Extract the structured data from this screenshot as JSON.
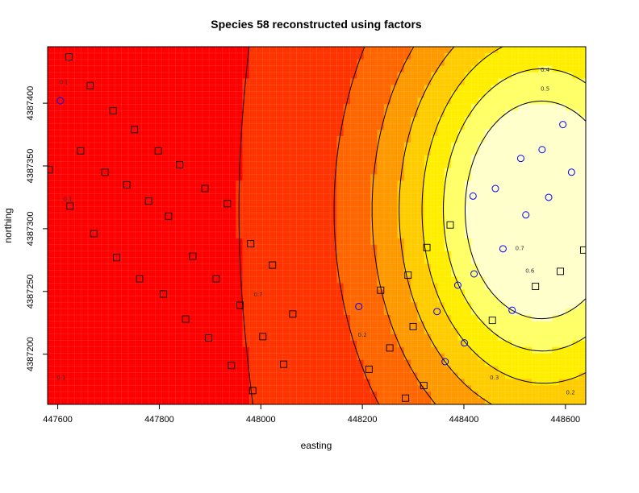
{
  "chart_data": {
    "type": "heatmap",
    "title": "Species 58 reconstructed using factors",
    "xlabel": "easting",
    "ylabel": "northing",
    "xlim": [
      447580,
      448640
    ],
    "ylim": [
      4387160,
      4387445
    ],
    "x_ticks": [
      447600,
      447800,
      448000,
      448200,
      448400,
      448600
    ],
    "y_ticks": [
      4387200,
      4387250,
      4387300,
      4387350,
      4387400
    ],
    "colors": [
      "#ff0000",
      "#ff3300",
      "#ff6600",
      "#ff9900",
      "#ffcc00",
      "#ffee00",
      "#ffff66",
      "#ffffcc"
    ],
    "contour_levels": [
      0.1,
      0.2,
      0.3,
      0.4,
      0.5,
      0.6,
      0.7
    ],
    "contour_labels": [
      {
        "text": "0.1",
        "x": 447612,
        "y": 4387415
      },
      {
        "text": "0.1",
        "x": 447620,
        "y": 4387322
      },
      {
        "text": "0.1",
        "x": 447607,
        "y": 4387180
      },
      {
        "text": "0.7",
        "x": 447995,
        "y": 4387246
      },
      {
        "text": "0.2",
        "x": 448200,
        "y": 4387214
      },
      {
        "text": "0.3",
        "x": 448460,
        "y": 4387180
      },
      {
        "text": "0.4",
        "x": 448560,
        "y": 4387425
      },
      {
        "text": "0.5",
        "x": 448560,
        "y": 4387410
      },
      {
        "text": "0.7",
        "x": 448510,
        "y": 4387283
      },
      {
        "text": "0.6",
        "x": 448530,
        "y": 4387265
      },
      {
        "text": "0.2",
        "x": 448610,
        "y": 4387168
      }
    ],
    "series": [
      {
        "marker": "square",
        "points": [
          [
            447622,
            4387437
          ],
          [
            447664,
            4387414
          ],
          [
            447709,
            4387394
          ],
          [
            447751,
            4387379
          ],
          [
            447798,
            4387362
          ],
          [
            447840,
            4387351
          ],
          [
            447890,
            4387332
          ],
          [
            447934,
            4387320
          ],
          [
            447583,
            4387347
          ],
          [
            447645,
            4387362
          ],
          [
            447693,
            4387345
          ],
          [
            447736,
            4387335
          ],
          [
            447779,
            4387322
          ],
          [
            447818,
            4387310
          ],
          [
            447624,
            4387318
          ],
          [
            447671,
            4387296
          ],
          [
            447716,
            4387277
          ],
          [
            447761,
            4387260
          ],
          [
            447808,
            4387248
          ],
          [
            447866,
            4387278
          ],
          [
            447912,
            4387260
          ],
          [
            447980,
            4387288
          ],
          [
            448023,
            4387271
          ],
          [
            447852,
            4387228
          ],
          [
            447897,
            4387213
          ],
          [
            447942,
            4387191
          ],
          [
            447959,
            4387239
          ],
          [
            448004,
            4387214
          ],
          [
            448045,
            4387192
          ],
          [
            448063,
            4387232
          ],
          [
            447984,
            4387171
          ],
          [
            448024,
            4387153
          ],
          [
            448213,
            4387188
          ],
          [
            448236,
            4387251
          ],
          [
            448254,
            4387205
          ],
          [
            448285,
            4387165
          ],
          [
            448290,
            4387263
          ],
          [
            448300,
            4387222
          ],
          [
            448321,
            4387175
          ],
          [
            448327,
            4387285
          ],
          [
            448373,
            4387303
          ],
          [
            448456,
            4387227
          ],
          [
            448541,
            4387254
          ],
          [
            448590,
            4387266
          ],
          [
            448636,
            4387283
          ],
          [
            448227,
            4387146
          ]
        ]
      },
      {
        "marker": "circle",
        "color": "#0000ff",
        "points": [
          [
            447605,
            4387402
          ],
          [
            448193,
            4387238
          ],
          [
            448347,
            4387234
          ],
          [
            448363,
            4387194
          ],
          [
            448388,
            4387255
          ],
          [
            448401,
            4387209
          ],
          [
            448418,
            4387326
          ],
          [
            448420,
            4387264
          ],
          [
            448462,
            4387332
          ],
          [
            448477,
            4387284
          ],
          [
            448495,
            4387235
          ],
          [
            448512,
            4387356
          ],
          [
            448522,
            4387311
          ],
          [
            448554,
            4387363
          ],
          [
            448567,
            4387325
          ],
          [
            448595,
            4387383
          ],
          [
            448612,
            4387345
          ]
        ]
      }
    ]
  }
}
